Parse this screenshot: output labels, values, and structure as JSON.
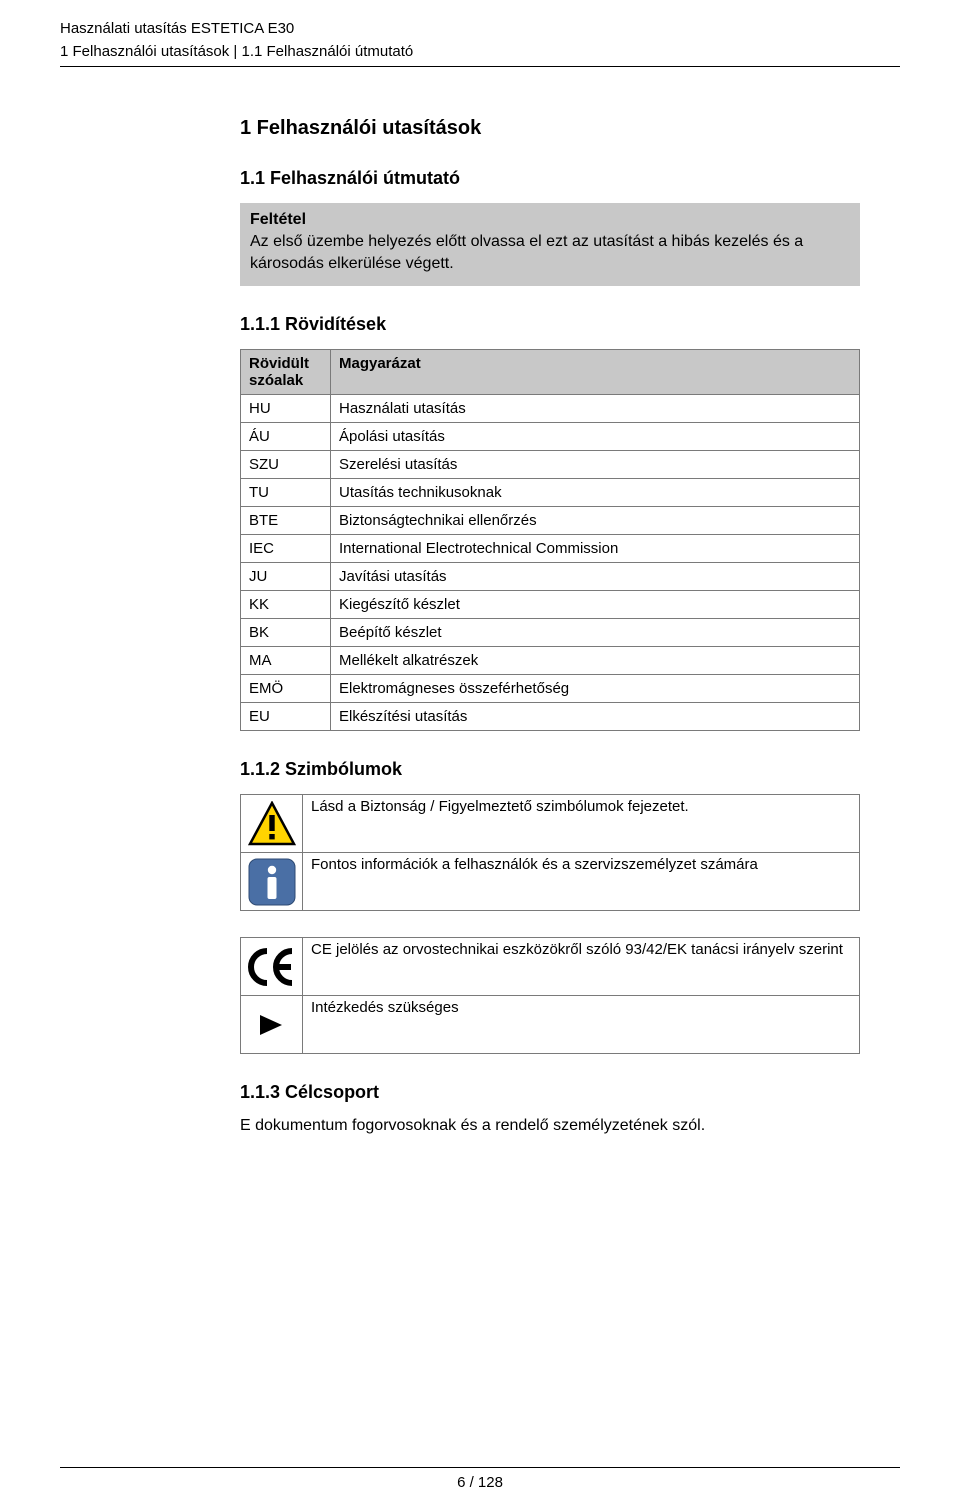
{
  "header": {
    "line1": "Használati utasítás ESTETICA E30",
    "line2": "1 Felhasználói utasítások | 1.1 Felhasználói útmutató"
  },
  "section": {
    "h1": "1 Felhasználói utasítások",
    "h2": "1.1 Felhasználói útmutató",
    "condition_box": {
      "title": "Feltétel",
      "body": "Az első üzembe helyezés előtt olvassa el ezt az utasítást a hibás kezelés és a károsodás elkerülése végett."
    },
    "abbr": {
      "heading": "1.1.1 Rövidítések",
      "th_abbr": "Rövidült szóalak",
      "th_mean": "Magyarázat",
      "rows": [
        {
          "a": "HU",
          "m": "Használati utasítás"
        },
        {
          "a": "ÁU",
          "m": "Ápolási utasítás"
        },
        {
          "a": "SZU",
          "m": "Szerelési utasítás"
        },
        {
          "a": "TU",
          "m": "Utasítás technikusoknak"
        },
        {
          "a": "BTE",
          "m": "Biztonságtechnikai ellenőrzés"
        },
        {
          "a": "IEC",
          "m": "International Electrotechnical Commission"
        },
        {
          "a": "JU",
          "m": "Javítási utasítás"
        },
        {
          "a": "KK",
          "m": "Kiegészítő készlet"
        },
        {
          "a": "BK",
          "m": "Beépítő készlet"
        },
        {
          "a": "MA",
          "m": "Mellékelt alkatrészek"
        },
        {
          "a": "EMÖ",
          "m": "Elektromágneses összeférhetőség"
        },
        {
          "a": "EU",
          "m": "Elkészítési utasítás"
        }
      ]
    },
    "symbols": {
      "heading": "1.1.2 Szimbólumok",
      "rows": [
        {
          "icon": "warning",
          "text": "Lásd a Biztonság / Figyelmeztető szimbólumok fejezetet."
        },
        {
          "icon": "info",
          "text": "Fontos információk a felhasználók és a szervizszemélyzet számára"
        },
        {
          "icon": "ce",
          "text": "CE jelölés az orvostechnikai eszközökről szóló 93/42/EK tanácsi irányelv szerint"
        },
        {
          "icon": "action",
          "text": "Intézkedés szükséges"
        }
      ]
    },
    "target": {
      "heading": "1.1.3 Célcsoport",
      "body": "E dokumentum fogorvosoknak és a rendelő személyzetének szól."
    }
  },
  "footer": {
    "page": "6 / 128"
  },
  "style": {
    "background": "#ffffff",
    "text_color": "#000000",
    "grey_box_bg": "#c8c8c8",
    "table_border": "#7a7a7a",
    "info_icon_bg": "#4a6fa5",
    "warning_fill": "#ffd400",
    "warning_stroke": "#000000",
    "font_sizes": {
      "header": 15,
      "h1": 20,
      "h2": 18,
      "body": 16,
      "table": 15
    }
  }
}
